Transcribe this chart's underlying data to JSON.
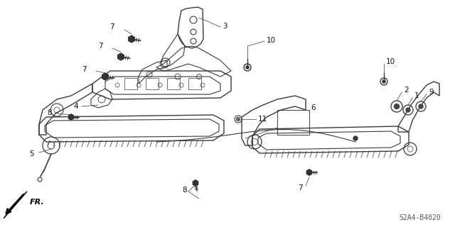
{
  "part_code": "S2A4-B4020",
  "background_color": "#ffffff",
  "line_color": "#3a3a3a",
  "label_color": "#111111",
  "fr_label": "FR.",
  "figsize": [
    6.4,
    3.2
  ],
  "dpi": 100
}
